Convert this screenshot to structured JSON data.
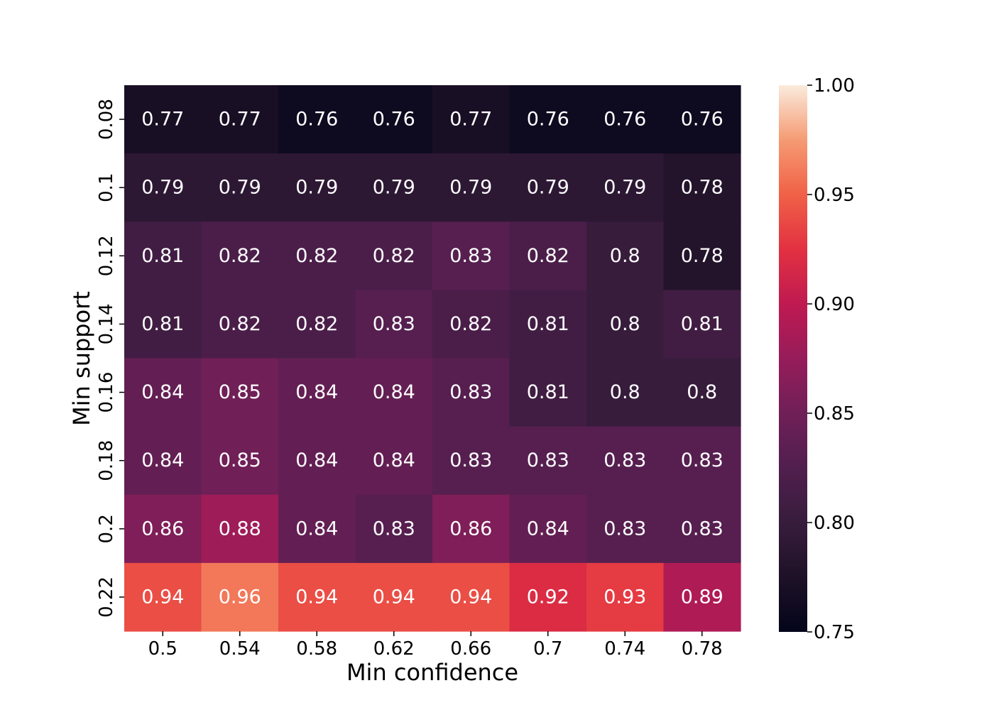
{
  "chart_data": {
    "type": "heatmap",
    "title": "",
    "xlabel": "Min confidence",
    "ylabel": "Min support",
    "x": [
      "0.5",
      "0.54",
      "0.58",
      "0.62",
      "0.66",
      "0.7",
      "0.74",
      "0.78"
    ],
    "y": [
      "0.08",
      "0.1",
      "0.12",
      "0.14",
      "0.16",
      "0.18",
      "0.2",
      "0.22"
    ],
    "values": [
      [
        0.77,
        0.77,
        0.76,
        0.76,
        0.77,
        0.76,
        0.76,
        0.76
      ],
      [
        0.79,
        0.79,
        0.79,
        0.79,
        0.79,
        0.79,
        0.79,
        0.78
      ],
      [
        0.81,
        0.82,
        0.82,
        0.82,
        0.83,
        0.82,
        0.8,
        0.78
      ],
      [
        0.81,
        0.82,
        0.82,
        0.83,
        0.82,
        0.81,
        0.8,
        0.81
      ],
      [
        0.84,
        0.85,
        0.84,
        0.84,
        0.83,
        0.81,
        0.8,
        0.8
      ],
      [
        0.84,
        0.85,
        0.84,
        0.84,
        0.83,
        0.83,
        0.83,
        0.83
      ],
      [
        0.86,
        0.88,
        0.84,
        0.83,
        0.86,
        0.84,
        0.83,
        0.83
      ],
      [
        0.94,
        0.96,
        0.94,
        0.94,
        0.94,
        0.92,
        0.93,
        0.89
      ]
    ],
    "colorbar": {
      "range": [
        0.75,
        1.0
      ],
      "ticks": [
        "0.75",
        "0.80",
        "0.85",
        "0.90",
        "0.95",
        "1.00"
      ],
      "colormap": "rocket"
    }
  }
}
